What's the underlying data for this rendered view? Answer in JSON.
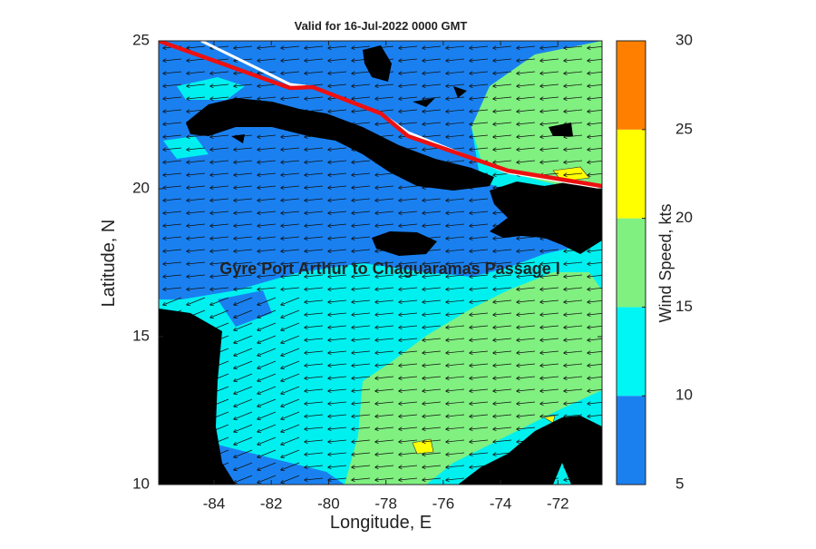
{
  "map": {
    "title": "Valid for 16-Jul-2022 0000 GMT",
    "xlabel": "Longitude, E",
    "ylabel": "Latitude, N",
    "annotation": "Gyre Port Arthur to Chaguaramas Passage I",
    "xlim": [
      -85.93,
      -70.46
    ],
    "ylim": [
      10,
      25
    ],
    "xticks": [
      -84,
      -82,
      -80,
      -78,
      -76,
      -74,
      -72
    ],
    "yticks": [
      10,
      15,
      20,
      25
    ],
    "colorbar": {
      "label": "Wind Speed, kts",
      "lim": [
        5,
        30
      ],
      "ticks": [
        5,
        10,
        15,
        20,
        25,
        30
      ],
      "colors": [
        "#1a80f0",
        "#00f5f5",
        "#80f080",
        "#ffff00",
        "#ff8000"
      ]
    }
  }
}
